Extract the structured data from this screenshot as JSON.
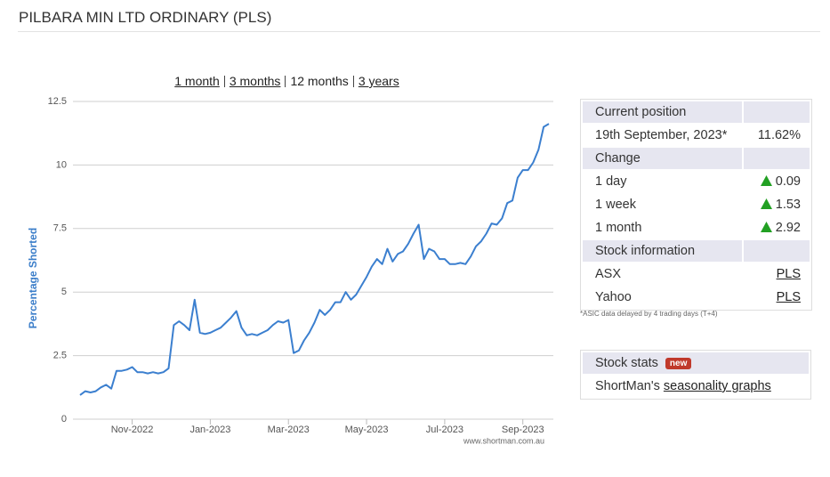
{
  "header": {
    "title": "PILBARA MIN LTD ORDINARY (PLS)"
  },
  "periods": [
    "1 month",
    "3 months",
    "12 months",
    "3 years"
  ],
  "selected_period_index": 2,
  "chart_data": {
    "type": "line",
    "y_label": "Percentage Shorted",
    "watermark": "www.shortman.com.au",
    "color": "#3b7fcf",
    "grid": true,
    "ylim": [
      0,
      12.5
    ],
    "yticks": [
      0,
      2.5,
      5,
      7.5,
      10,
      12.5
    ],
    "categories": [
      null,
      null,
      null,
      null,
      null,
      null,
      null,
      null,
      null,
      null,
      "Nov-2022",
      null,
      null,
      null,
      null,
      null,
      null,
      null,
      null,
      null,
      null,
      null,
      null,
      null,
      null,
      "Jan-2023",
      null,
      null,
      null,
      null,
      null,
      null,
      null,
      null,
      null,
      null,
      null,
      null,
      null,
      null,
      "Mar-2023",
      null,
      null,
      null,
      null,
      null,
      null,
      null,
      null,
      null,
      null,
      null,
      null,
      null,
      null,
      "May-2023",
      null,
      null,
      null,
      null,
      null,
      null,
      null,
      null,
      null,
      null,
      null,
      null,
      null,
      null,
      "Jul-2023",
      null,
      null,
      null,
      null,
      null,
      null,
      null,
      null,
      null,
      null,
      null,
      null,
      null,
      null,
      "Sep-2023",
      null,
      null,
      null,
      null,
      null
    ],
    "values": [
      0.95,
      1.1,
      1.05,
      1.1,
      1.25,
      1.35,
      1.2,
      1.9,
      1.9,
      1.95,
      2.05,
      1.85,
      1.85,
      1.8,
      1.85,
      1.8,
      1.85,
      2.0,
      3.7,
      3.85,
      3.7,
      3.5,
      4.7,
      3.4,
      3.35,
      3.4,
      3.5,
      3.6,
      3.8,
      4.0,
      4.25,
      3.6,
      3.3,
      3.35,
      3.3,
      3.4,
      3.5,
      3.7,
      3.85,
      3.8,
      3.9,
      2.6,
      2.7,
      3.1,
      3.4,
      3.8,
      4.3,
      4.1,
      4.3,
      4.6,
      4.6,
      5.0,
      4.7,
      4.9,
      5.25,
      5.6,
      6.0,
      6.3,
      6.1,
      6.7,
      6.2,
      6.5,
      6.6,
      6.9,
      7.3,
      7.65,
      6.3,
      6.7,
      6.6,
      6.3,
      6.3,
      6.1,
      6.1,
      6.15,
      6.1,
      6.4,
      6.8,
      7.0,
      7.3,
      7.7,
      7.65,
      7.9,
      8.5,
      8.6,
      9.5,
      9.8,
      9.8,
      10.1,
      10.6,
      11.5,
      11.62
    ]
  },
  "position": {
    "header": "Current position",
    "date": "19th September, 2023*",
    "value": "11.62%"
  },
  "change": {
    "header": "Change",
    "rows": [
      {
        "label": "1 day",
        "value": 0.09
      },
      {
        "label": "1 week",
        "value": 1.53
      },
      {
        "label": "1 month",
        "value": 2.92
      }
    ]
  },
  "stock_info": {
    "header": "Stock information",
    "rows": [
      {
        "label": "ASX",
        "link": "PLS"
      },
      {
        "label": "Yahoo",
        "link": "PLS"
      }
    ]
  },
  "footnote": "*ASIC data delayed by 4 trading days (T+4)",
  "stats": {
    "header": "Stock stats",
    "badge": "new",
    "text": "ShortMan's",
    "link": "seasonality graphs"
  }
}
